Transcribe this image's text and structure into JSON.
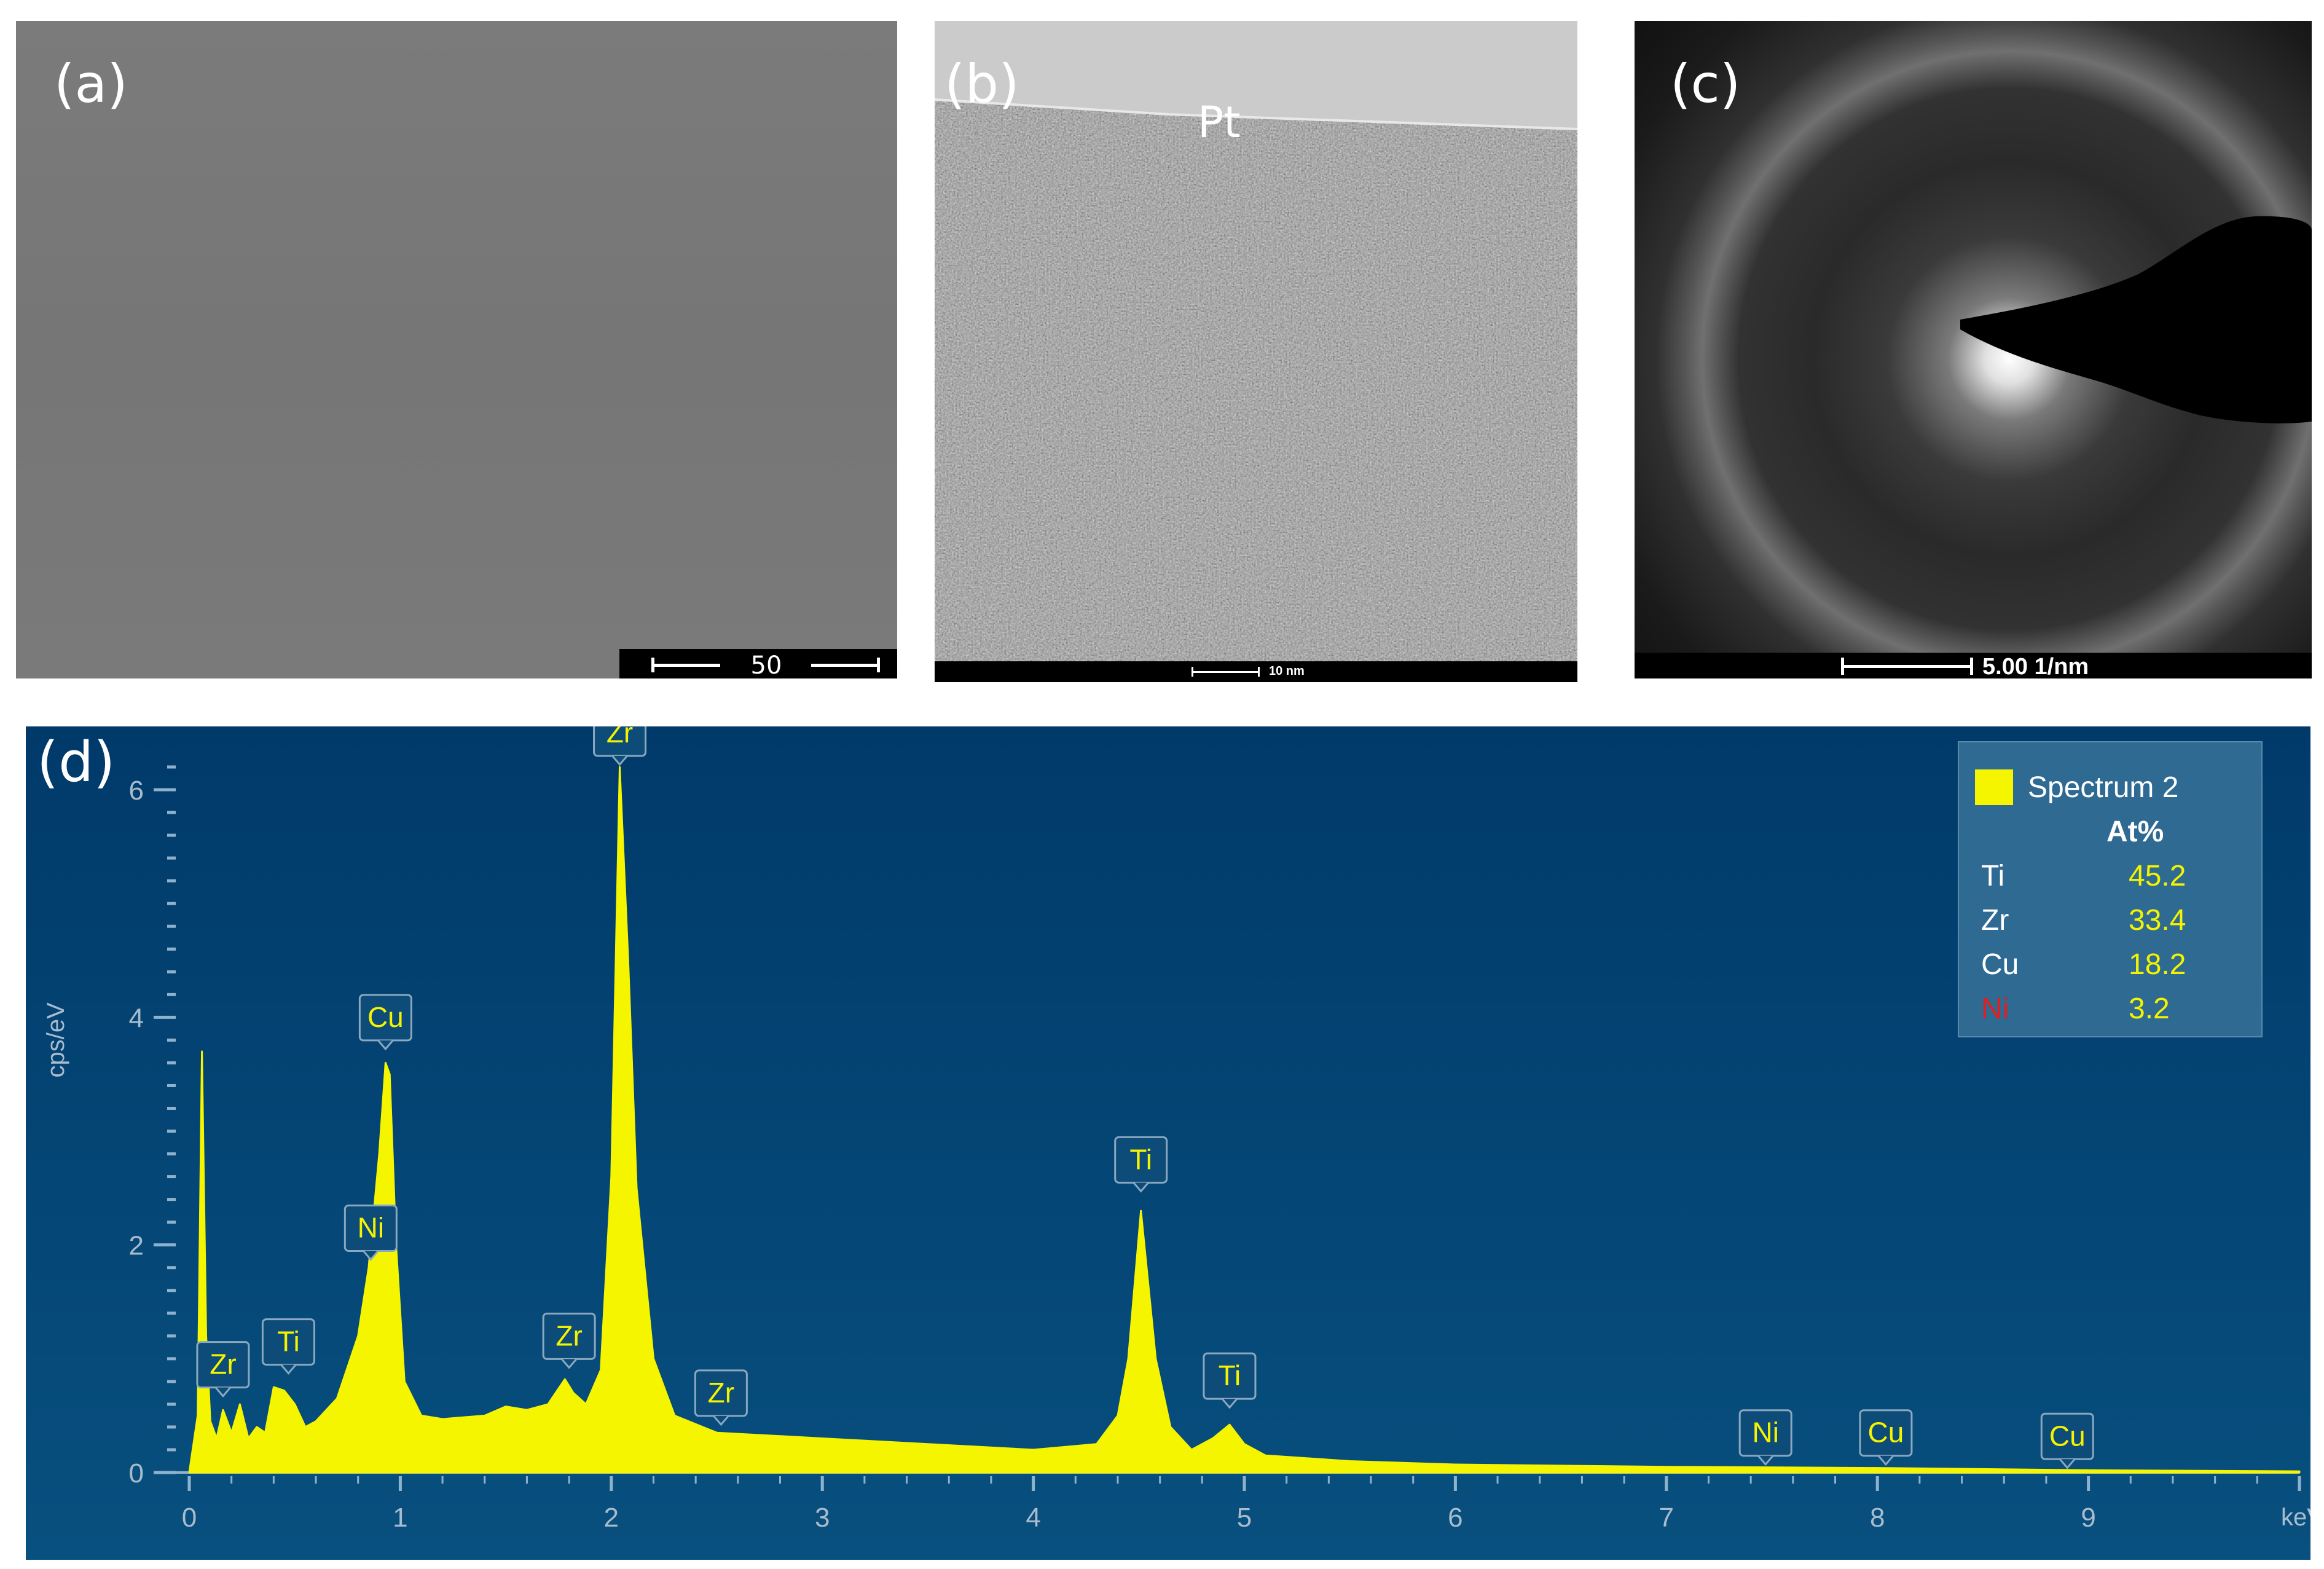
{
  "panels": {
    "a": {
      "label": "(a)",
      "scale_bar": "50 µm"
    },
    "b": {
      "label": "(b)",
      "annotation": "Pt",
      "scale_bar": "10 nm"
    },
    "c": {
      "label": "(c)",
      "scale_bar": "5.00 1/nm"
    },
    "d": {
      "label": "(d)"
    }
  },
  "chart_data": {
    "type": "line",
    "xlabel": "keV",
    "ylabel": "cps/eV",
    "xlim": [
      0,
      10
    ],
    "ylim": [
      0,
      6.2
    ],
    "x_ticks": [
      "0",
      "1",
      "2",
      "3",
      "4",
      "5",
      "6",
      "7",
      "8",
      "9"
    ],
    "y_ticks": [
      "0",
      "2",
      "4",
      "6"
    ],
    "series": [
      {
        "name": "Spectrum 2",
        "color": "#f5f500",
        "x": [
          0.0,
          0.04,
          0.06,
          0.08,
          0.1,
          0.13,
          0.16,
          0.2,
          0.24,
          0.28,
          0.32,
          0.36,
          0.4,
          0.45,
          0.5,
          0.55,
          0.6,
          0.7,
          0.8,
          0.85,
          0.9,
          0.93,
          0.95,
          0.98,
          1.02,
          1.1,
          1.2,
          1.4,
          1.5,
          1.6,
          1.7,
          1.78,
          1.82,
          1.88,
          1.95,
          2.0,
          2.04,
          2.08,
          2.12,
          2.2,
          2.3,
          2.5,
          3.0,
          3.5,
          4.0,
          4.3,
          4.4,
          4.45,
          4.51,
          4.58,
          4.65,
          4.75,
          4.85,
          4.93,
          5.0,
          5.1,
          5.5,
          6.0,
          7.0,
          8.0,
          9.0,
          10.0
        ],
        "values": [
          0.0,
          0.5,
          3.7,
          1.2,
          0.45,
          0.3,
          0.55,
          0.35,
          0.6,
          0.3,
          0.4,
          0.35,
          0.75,
          0.72,
          0.6,
          0.4,
          0.45,
          0.65,
          1.2,
          1.8,
          2.8,
          3.6,
          3.5,
          2.0,
          0.8,
          0.5,
          0.47,
          0.5,
          0.58,
          0.55,
          0.6,
          0.82,
          0.7,
          0.6,
          0.9,
          2.6,
          6.2,
          4.5,
          2.5,
          1.0,
          0.5,
          0.35,
          0.3,
          0.25,
          0.2,
          0.25,
          0.5,
          1.0,
          2.3,
          1.0,
          0.4,
          0.2,
          0.3,
          0.42,
          0.25,
          0.15,
          0.1,
          0.07,
          0.05,
          0.04,
          0.02,
          0.01
        ]
      }
    ],
    "peak_labels": [
      {
        "element": "Zr",
        "x": 0.16,
        "y": 0.65
      },
      {
        "element": "Ti",
        "x": 0.47,
        "y": 0.85
      },
      {
        "element": "Ni",
        "x": 0.86,
        "y": 1.85
      },
      {
        "element": "Cu",
        "x": 0.93,
        "y": 3.7
      },
      {
        "element": "Zr",
        "x": 1.8,
        "y": 0.9
      },
      {
        "element": "Zr",
        "x": 2.04,
        "y": 6.2
      },
      {
        "element": "Zr",
        "x": 2.52,
        "y": 0.4
      },
      {
        "element": "Ti",
        "x": 4.51,
        "y": 2.45
      },
      {
        "element": "Ti",
        "x": 4.93,
        "y": 0.55
      },
      {
        "element": "Ni",
        "x": 7.47,
        "y": 0.05
      },
      {
        "element": "Cu",
        "x": 8.04,
        "y": 0.05
      },
      {
        "element": "Cu",
        "x": 8.9,
        "y": 0.02
      }
    ],
    "legend": {
      "name": "Spectrum 2",
      "header": "At%",
      "placement": "top-right",
      "rows": [
        {
          "element": "Ti",
          "value": "45.2",
          "color": "#ffffff"
        },
        {
          "element": "Zr",
          "value": "33.4",
          "color": "#ffffff"
        },
        {
          "element": "Cu",
          "value": "18.2",
          "color": "#ffffff"
        },
        {
          "element": "Ni",
          "value": "3.2",
          "color": "#e02020"
        }
      ]
    }
  }
}
